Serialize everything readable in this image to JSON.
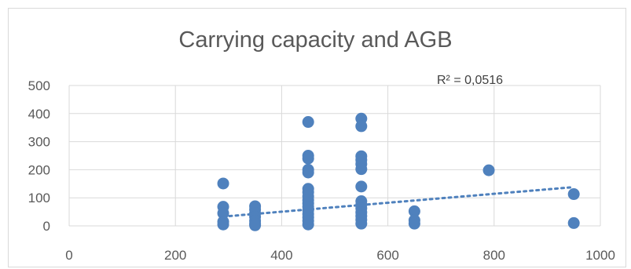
{
  "chart_data": {
    "type": "scatter",
    "title": "Carrying capacity and AGB",
    "xlabel": "",
    "ylabel": "",
    "xlim": [
      0,
      1000
    ],
    "ylim": [
      0,
      500
    ],
    "x_ticks": [
      0,
      200,
      400,
      600,
      800,
      1000
    ],
    "y_ticks": [
      0,
      100,
      200,
      300,
      400,
      500
    ],
    "x_tick_labels": [
      "0",
      "200",
      "400",
      "600",
      "800",
      "1000"
    ],
    "y_tick_labels": [
      "0",
      "100",
      "200",
      "300",
      "400",
      "500"
    ],
    "grid": true,
    "marker_color": "#4f81bd",
    "trendline": {
      "type": "linear",
      "style": "dotted",
      "color": "#4f81bd",
      "x_range": [
        290,
        950
      ],
      "y_start": 33,
      "y_end": 138
    },
    "annotation": "R² = 0,0516",
    "points": [
      {
        "x": 290,
        "y": 151
      },
      {
        "x": 290,
        "y": 68
      },
      {
        "x": 290,
        "y": 45
      },
      {
        "x": 290,
        "y": 15
      },
      {
        "x": 290,
        "y": 5
      },
      {
        "x": 350,
        "y": 70
      },
      {
        "x": 350,
        "y": 58
      },
      {
        "x": 350,
        "y": 45
      },
      {
        "x": 350,
        "y": 32
      },
      {
        "x": 350,
        "y": 18
      },
      {
        "x": 350,
        "y": 8
      },
      {
        "x": 350,
        "y": 2
      },
      {
        "x": 450,
        "y": 370
      },
      {
        "x": 450,
        "y": 250
      },
      {
        "x": 450,
        "y": 240
      },
      {
        "x": 450,
        "y": 200
      },
      {
        "x": 450,
        "y": 190
      },
      {
        "x": 450,
        "y": 132
      },
      {
        "x": 450,
        "y": 120
      },
      {
        "x": 450,
        "y": 105
      },
      {
        "x": 450,
        "y": 92
      },
      {
        "x": 450,
        "y": 80
      },
      {
        "x": 450,
        "y": 68
      },
      {
        "x": 450,
        "y": 55
      },
      {
        "x": 450,
        "y": 42
      },
      {
        "x": 450,
        "y": 30
      },
      {
        "x": 450,
        "y": 18
      },
      {
        "x": 450,
        "y": 5
      },
      {
        "x": 550,
        "y": 382
      },
      {
        "x": 550,
        "y": 355
      },
      {
        "x": 550,
        "y": 248
      },
      {
        "x": 550,
        "y": 235
      },
      {
        "x": 550,
        "y": 220
      },
      {
        "x": 550,
        "y": 202
      },
      {
        "x": 550,
        "y": 140
      },
      {
        "x": 550,
        "y": 88
      },
      {
        "x": 550,
        "y": 75
      },
      {
        "x": 550,
        "y": 62
      },
      {
        "x": 550,
        "y": 48
      },
      {
        "x": 550,
        "y": 35
      },
      {
        "x": 550,
        "y": 22
      },
      {
        "x": 550,
        "y": 8
      },
      {
        "x": 650,
        "y": 52
      },
      {
        "x": 650,
        "y": 20
      },
      {
        "x": 650,
        "y": 8
      },
      {
        "x": 790,
        "y": 198
      },
      {
        "x": 950,
        "y": 113
      },
      {
        "x": 950,
        "y": 10
      }
    ]
  }
}
